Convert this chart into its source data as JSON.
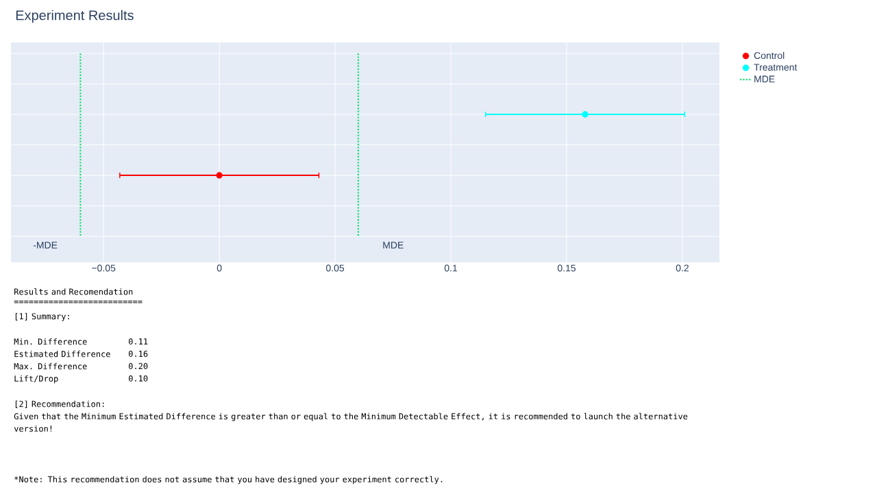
{
  "chart_data": {
    "type": "scatter",
    "orientation": "horizontal",
    "title": "Experiment Results",
    "categories": [
      null,
      null,
      null,
      null,
      null,
      null,
      null
    ],
    "series": [
      {
        "name": "Control",
        "color": "#ff0000",
        "marker": "circle",
        "values": [
          null,
          null,
          null,
          null,
          0,
          null,
          null
        ],
        "errors": [
          null,
          null,
          null,
          null,
          0.043,
          null,
          null
        ]
      },
      {
        "name": "Treatment",
        "color": "#00ffff",
        "marker": "circle",
        "values": [
          null,
          null,
          0.158,
          null,
          null,
          null,
          null
        ],
        "errors": [
          null,
          null,
          0.043,
          null,
          null,
          null,
          null
        ]
      },
      {
        "name": "MDE",
        "type": "line",
        "color": "#00e060",
        "line_style": "dotted",
        "marker": "none",
        "values": [
          -0.06,
          -0.06,
          -0.06,
          -0.06,
          -0.06,
          -0.06,
          -0.06
        ]
      },
      {
        "type": "line",
        "color": "#00e060",
        "line_style": "dotted",
        "marker": "none",
        "values": [
          0.06,
          0.06,
          0.06,
          0.06,
          0.06,
          0.06,
          0.06
        ]
      }
    ],
    "xlim": [
      -0.09,
      0.216
    ],
    "xticks": [
      {
        "value": -0.05,
        "label": "−0.05"
      },
      0,
      0.05,
      0.1,
      0.15,
      0.2
    ],
    "tick_labels": "x",
    "grid": true,
    "legend": "top right",
    "annotations": [
      "-MDE",
      "MDE",
      "Results and Recomendation",
      "==========================",
      "[1] Summary:",
      "Min. Difference",
      "0.11",
      "Estimated Difference",
      "0.16",
      "Max. Difference",
      "0.20",
      "Lift/Drop",
      "0.10",
      "[2] Recommendation:",
      "Given that the Minimum Estimated Difference is greater than or equal to the Minimum Detectable Effect, it is recommended to launch the alternative version!",
      "*Note: This recommendation does not assume that you have designed your experiment correctly."
    ]
  }
}
